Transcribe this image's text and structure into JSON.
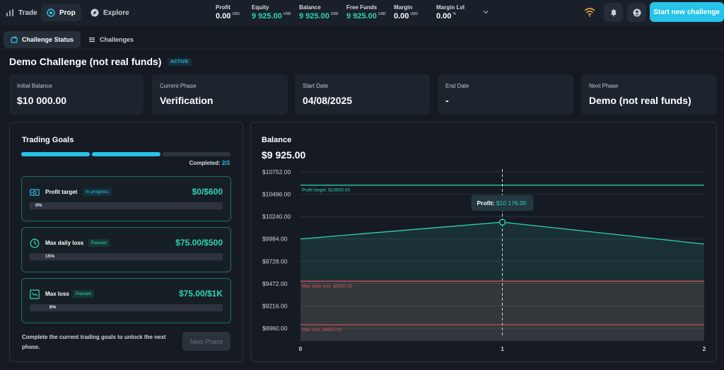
{
  "nav": {
    "tabs": [
      {
        "label": "Trade",
        "icon": "bar-chart-icon"
      },
      {
        "label": "Prop",
        "icon": "target-icon",
        "active": true
      },
      {
        "label": "Explore",
        "icon": "compass-icon"
      }
    ]
  },
  "stats": [
    {
      "label": "Profit",
      "value": "0.00",
      "unit": "USD"
    },
    {
      "label": "Equity",
      "value": "9 925.00",
      "unit": "USD"
    },
    {
      "label": "Balance",
      "value": "9 925.00",
      "unit": "USD"
    },
    {
      "label": "Free Funds",
      "value": "9 925.00",
      "unit": "USD"
    },
    {
      "label": "Margin",
      "value": "0.00",
      "unit": "USD"
    },
    {
      "label": "Margin Lvl",
      "value": "0.00",
      "unit": "%"
    }
  ],
  "header": {
    "cta_label": "Start new challenge"
  },
  "subtabs": [
    {
      "label": "Challenge Status",
      "active": true
    },
    {
      "label": "Challenges"
    }
  ],
  "page": {
    "title": "Demo Challenge (not real funds)",
    "status": "ACTIVE"
  },
  "cards": [
    {
      "label": "Initial Balance",
      "value": "$10 000.00"
    },
    {
      "label": "Current Phase",
      "value": "Verification"
    },
    {
      "label": "Start Date",
      "value": "04/08/2025"
    },
    {
      "label": "End Date",
      "value": "-"
    },
    {
      "label": "Next Phase",
      "value": "Demo (not real funds)"
    }
  ],
  "goals": {
    "title": "Trading Goals",
    "completed_label": "Completed:",
    "completed_value": "2/3",
    "progress_segments": [
      true,
      true,
      false
    ],
    "items": [
      {
        "name": "Profit target",
        "badge": "In progress",
        "badge_type": "progress",
        "value": "$0/$600",
        "percent": "0%",
        "icon": "money-icon"
      },
      {
        "name": "Max daily loss",
        "badge": "Passed",
        "badge_type": "passed",
        "value": "$75.00/$500",
        "percent": "15%",
        "icon": "clock-icon"
      },
      {
        "name": "Max loss",
        "badge": "Passed",
        "badge_type": "passed",
        "value": "$75.00/$1K",
        "percent": "8%",
        "icon": "trend-down-icon"
      }
    ],
    "note": "Complete the current trading goals to unlock the next phase.",
    "next_phase_label": "Next Phase"
  },
  "balance": {
    "title": "Balance",
    "value": "$9 925.00"
  },
  "colors": {
    "accent": "#27c3e8",
    "teal": "#2fd3b5",
    "danger": "#e0505a"
  },
  "chart_data": {
    "type": "area",
    "x": [
      0,
      1,
      2
    ],
    "values": [
      9984,
      10176,
      9925
    ],
    "xticks": [
      "0",
      "1",
      "2"
    ],
    "yticks": [
      "$10752.00",
      "$10496.00",
      "$10240.00",
      "$9984.00",
      "$9728.00",
      "$9472.00",
      "$9216.00",
      "$8960.00"
    ],
    "ylim": [
      8960,
      10752
    ],
    "grid": true,
    "reference_lines": [
      {
        "label": "Profit target: $10600.00",
        "value": 10600,
        "color": "#2fd3b5"
      },
      {
        "label": "Max daily loss: $9500.00",
        "value": 9500,
        "color": "#e0505a"
      },
      {
        "label": "Max loss: $9000.00",
        "value": 9000,
        "color": "#e0505a"
      }
    ],
    "tooltip": {
      "x": 1,
      "label": "Profit:",
      "value": "$10 176.00"
    }
  }
}
